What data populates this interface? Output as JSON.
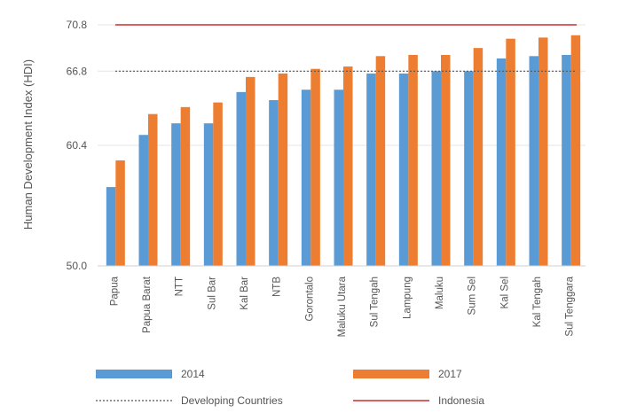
{
  "chart_data": {
    "type": "bar",
    "ylabel": "Human Development Index (HDI)",
    "ylim": [
      50.0,
      70.8
    ],
    "ytick_labels": [
      "50.0",
      "60.4",
      "66.8",
      "70.8"
    ],
    "grid": true,
    "legend_position": "bottom",
    "categories": [
      "Papua",
      "Papua Barat",
      "NTT",
      "Sul Bar",
      "Kal Bar",
      "NTB",
      "Gorontalo",
      "Maluku Utara",
      "Sul Tengah",
      "Lampung",
      "Maluku",
      "Sum Sel",
      "Kal Sel",
      "Kal Tengah",
      "Sul Tenggara"
    ],
    "series": [
      {
        "name": "2014",
        "color": "#5b9bd5",
        "values": [
          56.8,
          61.3,
          62.3,
          62.3,
          65.0,
          64.3,
          65.2,
          65.2,
          66.6,
          66.6,
          66.8,
          66.8,
          67.9,
          68.1,
          68.2
        ]
      },
      {
        "name": "2017",
        "color": "#ed7d31",
        "values": [
          59.1,
          63.1,
          63.7,
          64.1,
          66.3,
          66.6,
          67.0,
          67.2,
          68.1,
          68.2,
          68.2,
          68.8,
          69.6,
          69.7,
          69.9
        ]
      }
    ],
    "reference_lines": [
      {
        "name": "Developing Countries",
        "value": 66.8,
        "color": "#555555",
        "style": "dotted"
      },
      {
        "name": "Indonesia",
        "value": 70.8,
        "color": "#c00000",
        "style": "solid"
      }
    ]
  }
}
